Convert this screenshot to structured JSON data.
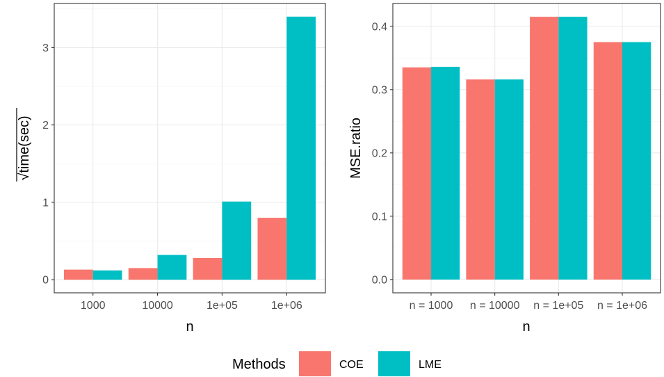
{
  "chart_data": [
    {
      "type": "bar",
      "categories": [
        "1000",
        "10000",
        "1e+05",
        "1e+06"
      ],
      "series": [
        {
          "name": "COE",
          "values": [
            0.13,
            0.15,
            0.28,
            0.8
          ]
        },
        {
          "name": "LME",
          "values": [
            0.12,
            0.32,
            1.01,
            3.4
          ]
        }
      ],
      "xlabel": "n",
      "ylabel_radical": "√",
      "ylabel": "time(sec)",
      "ylim": [
        -0.17,
        3.57
      ],
      "yticks": [
        0,
        1,
        2,
        3
      ],
      "grid": true
    },
    {
      "type": "bar",
      "categories": [
        "n = 1000",
        "n = 10000",
        "n = 1e+05",
        "n = 1e+06"
      ],
      "series": [
        {
          "name": "COE",
          "values": [
            0.335,
            0.316,
            0.415,
            0.375
          ]
        },
        {
          "name": "LME",
          "values": [
            0.336,
            0.316,
            0.415,
            0.375
          ]
        }
      ],
      "xlabel": "n",
      "ylabel": "MSE.ratio",
      "ylim": [
        -0.021,
        0.436
      ],
      "yticks": [
        0.0,
        0.1,
        0.2,
        0.3,
        0.4
      ],
      "ytick_labels": [
        "0.0",
        "0.1",
        "0.2",
        "0.3",
        "0.4"
      ],
      "grid": true
    }
  ],
  "legend": {
    "title": "Methods",
    "position": "bottom",
    "items": [
      {
        "label": "COE",
        "color": "#F8766D"
      },
      {
        "label": "LME",
        "color": "#00BFC4"
      }
    ]
  },
  "colors": {
    "COE": "#F8766D",
    "LME": "#00BFC4",
    "grid_major": "#EBEBEB",
    "grid_minor": "#F5F5F5",
    "panel_border": "#333333"
  }
}
